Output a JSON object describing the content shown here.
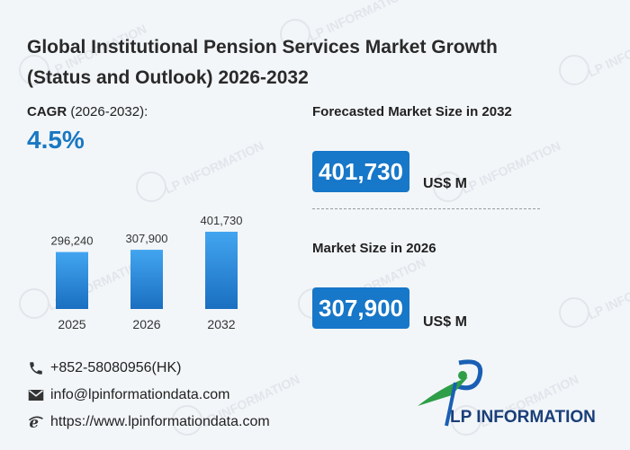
{
  "header": {
    "title_line1": "Global Institutional Pension Services Market Growth",
    "title_line2": "(Status and Outlook) 2026-2032"
  },
  "cagr": {
    "label_bold": "CAGR",
    "label_range": " (2026-2032):",
    "value": "4.5%"
  },
  "forecast": {
    "label": "Forecasted Market Size in 2032",
    "value": "401,730",
    "unit": "US$ M"
  },
  "current": {
    "label": "Market Size in 2026",
    "value": "307,900",
    "unit": "US$ M"
  },
  "contacts": {
    "phone": "+852-58080956(HK)",
    "email": "info@lpinformationdata.com",
    "website": "https://www.lpinformationdata.com"
  },
  "brand": {
    "logo_text": "LP INFORMATION",
    "watermark_text": "LP INFORMATION"
  },
  "colors": {
    "accent": "#1a78c2",
    "bar_top": "#42a5f0",
    "bar_bottom": "#1a6fc0"
  },
  "chart_data": {
    "type": "bar",
    "categories": [
      "2025",
      "2026",
      "2032"
    ],
    "values": [
      296240,
      307900,
      401730
    ],
    "value_labels": [
      "296,240",
      "307,900",
      "401,730"
    ],
    "title": "",
    "xlabel": "",
    "ylabel": "",
    "grid": false
  }
}
